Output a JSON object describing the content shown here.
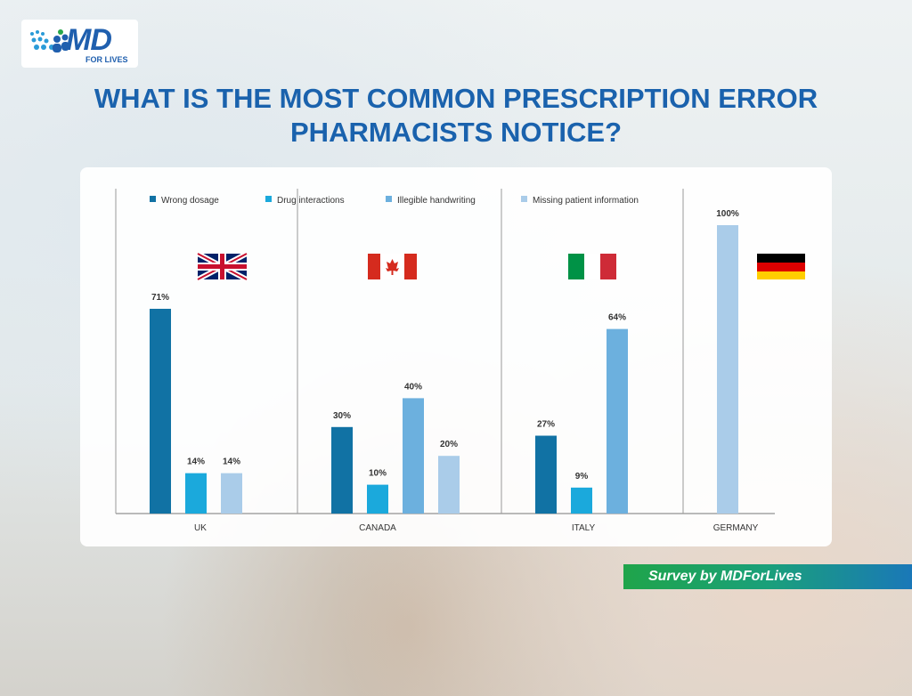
{
  "logo": {
    "name": "MD",
    "tagline": "FOR LIVES"
  },
  "footer": "Survey by MDForLives",
  "chart_data": {
    "type": "bar",
    "title": [
      "WHAT IS THE MOST COMMON PRESCRIPTION ERROR",
      "PHARMACISTS NOTICE?"
    ],
    "categories": [
      "UK",
      "CANADA",
      "ITALY",
      "GERMANY"
    ],
    "series": [
      {
        "name": "Wrong dosage",
        "color": "#1172a4",
        "values": [
          71,
          30,
          27,
          null
        ],
        "value_labels": [
          "71%",
          "30%",
          "27%",
          null
        ]
      },
      {
        "name": "Drug interactions",
        "color": "#1ba9dc",
        "values": [
          14,
          10,
          9,
          null
        ],
        "value_labels": [
          "14%",
          "10%",
          "9%",
          null
        ]
      },
      {
        "name": "Illegible handwriting",
        "color": "#6cb0de",
        "values": [
          null,
          40,
          64,
          null
        ],
        "value_labels": [
          null,
          "40%",
          "64%",
          null
        ]
      },
      {
        "name": "Missing patient information",
        "color": "#aacce9",
        "values": [
          14,
          20,
          null,
          100
        ],
        "value_labels": [
          "14%",
          "20%",
          null,
          "100%"
        ]
      }
    ]
  }
}
